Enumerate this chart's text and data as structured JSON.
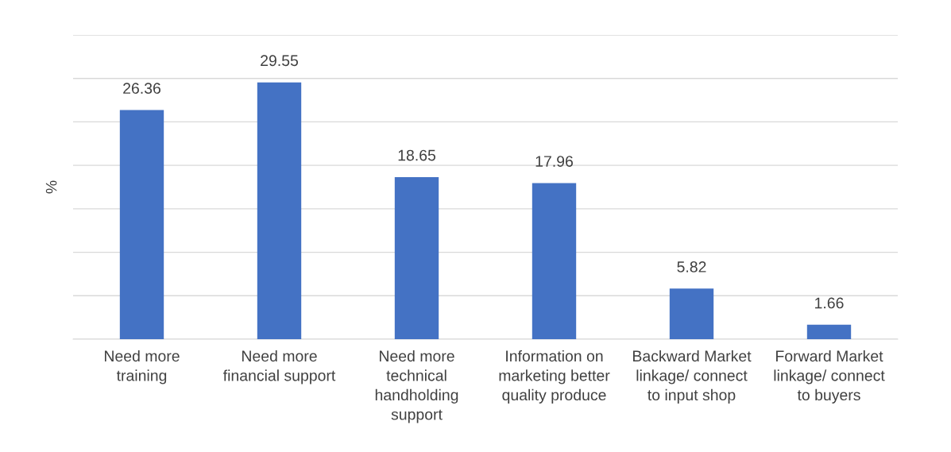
{
  "chart_data": {
    "type": "bar",
    "ylabel": "%",
    "categories": [
      "Need more\ntraining",
      "Need more\nfinancial support",
      "Need more\ntechnical\nhandholding\nsupport",
      "Information on\nmarketing better\nquality produce",
      "Backward Market\nlinkage/ connect\nto input shop",
      "Forward Market\nlinkage/ connect\nto buyers"
    ],
    "values": [
      26.36,
      29.55,
      18.65,
      17.96,
      5.82,
      1.66
    ],
    "color": "#4472c4",
    "data_labels": true,
    "ylim": [
      0,
      35
    ],
    "yticks": [
      {
        "value": 0,
        "label": null
      },
      {
        "value": 5,
        "label": null
      },
      {
        "value": 10,
        "label": null
      },
      {
        "value": 15,
        "label": null
      },
      {
        "value": 20,
        "label": null
      },
      {
        "value": 25,
        "label": null
      },
      {
        "value": 30,
        "label": null
      },
      {
        "value": 35,
        "label": null
      }
    ],
    "grid": "y",
    "tick_labels": "x",
    "legend": false
  }
}
